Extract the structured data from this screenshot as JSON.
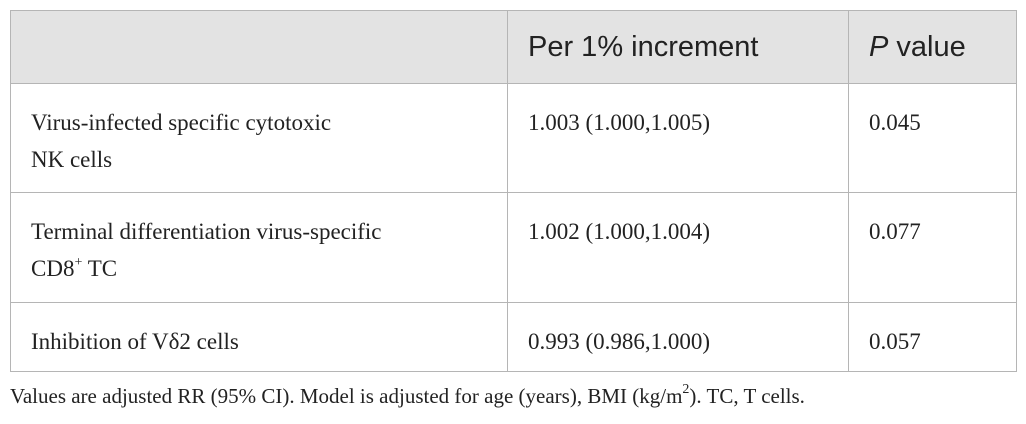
{
  "table": {
    "header": {
      "estimate": "Per 1% increment",
      "p_symbol": "P",
      "p_rest": " value"
    },
    "rows": [
      {
        "label": {
          "line1": "Virus-infected specific cytotoxic",
          "line2": "NK cells"
        },
        "estimate": "1.003 (1.000,1.005)",
        "p": "0.045"
      },
      {
        "label": {
          "line1": "Terminal differentiation virus-specific",
          "line2": "CD8",
          "sup": "+",
          "line2_rest": " TC"
        },
        "estimate": "1.002 (1.000,1.004)",
        "p": "0.077"
      },
      {
        "label": {
          "line1": "Inhibition of Vδ2 cells"
        },
        "estimate": "0.993 (0.986,1.000)",
        "p": "0.057"
      }
    ]
  },
  "footnote": {
    "text": "Values are adjusted RR (95% CI). Model is adjusted for age (years), BMI (kg/m",
    "sup": "2",
    "rest": "). TC, T cells."
  }
}
